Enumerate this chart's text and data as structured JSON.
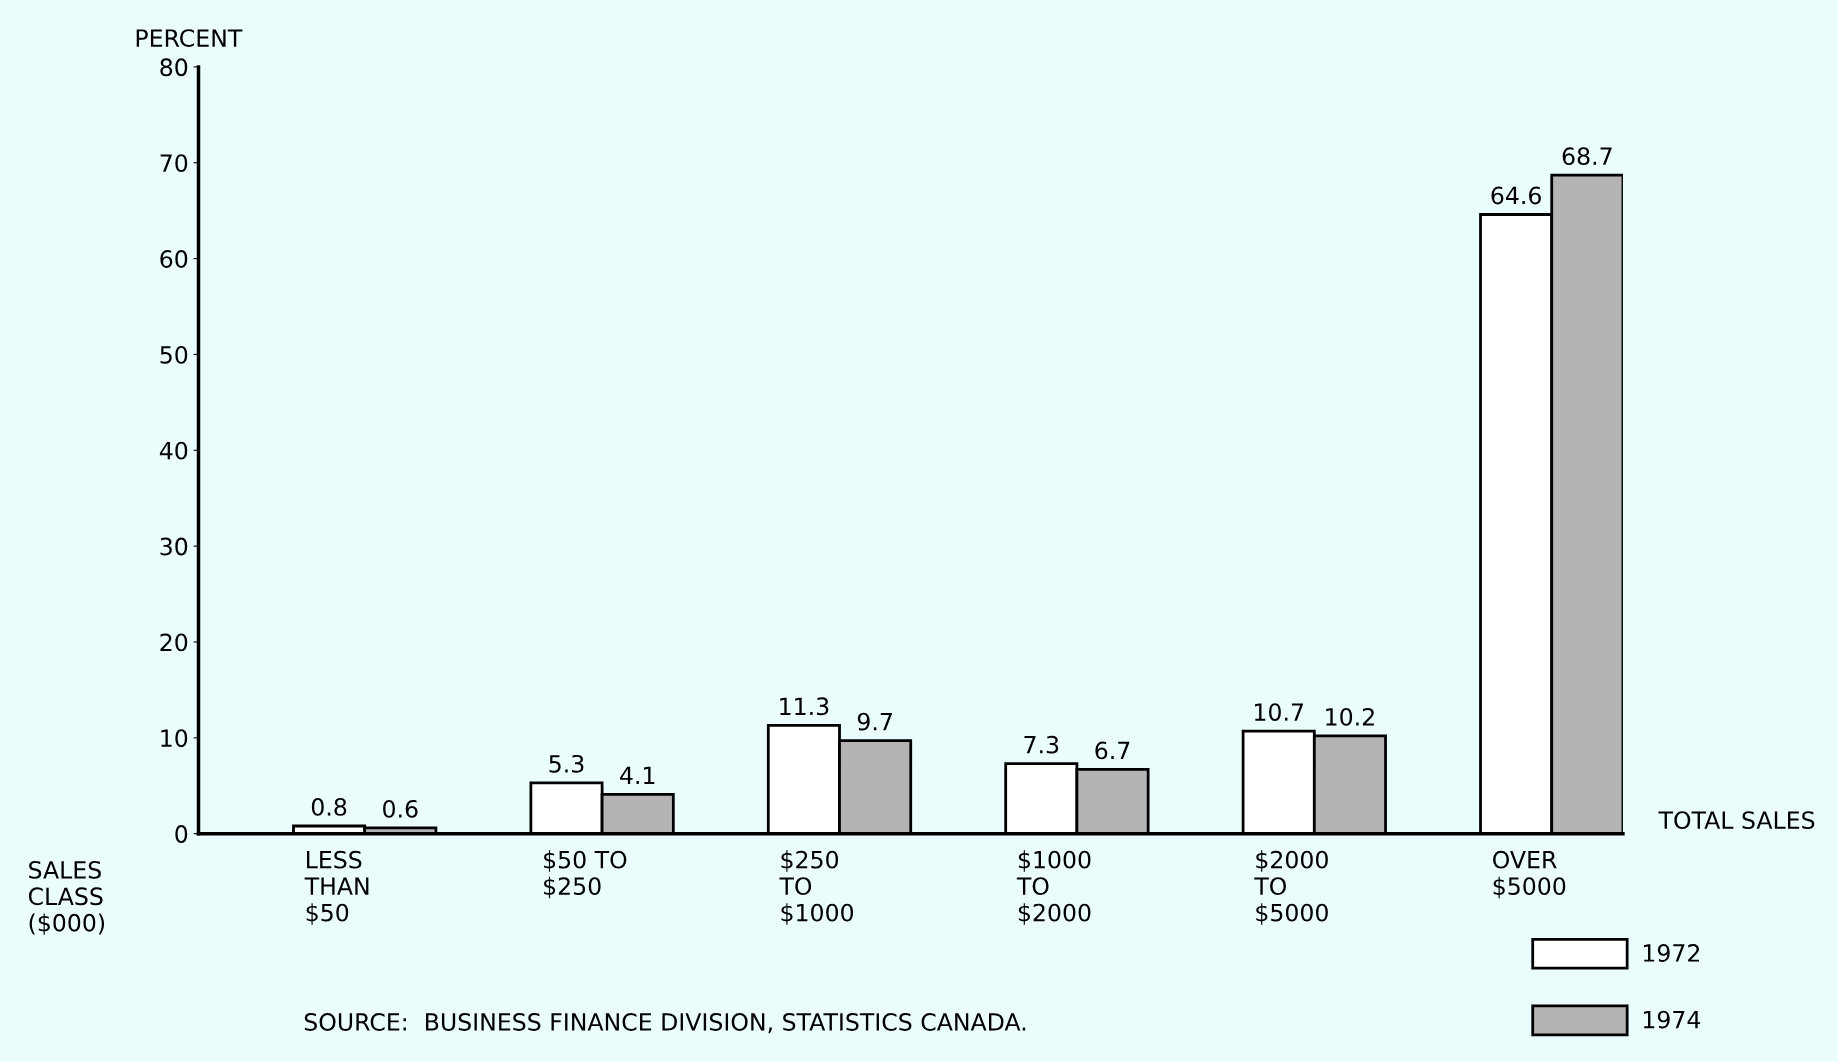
{
  "chart_data": {
    "type": "bar",
    "ylabel": "PERCENT",
    "xlabel": "SALES\nCLASS\n($000)",
    "categories": [
      "LESS\nTHAN\n$50",
      "$50 TO\n$250",
      "$250\nTO\n$1000",
      "$1000\nTO\n$2000",
      "$2000\nTO\n$5000",
      "OVER\n$5000"
    ],
    "series": [
      {
        "name": "1972",
        "color": "#ffffff",
        "values": [
          0.8,
          5.3,
          11.3,
          7.3,
          10.7,
          64.6
        ]
      },
      {
        "name": "1974",
        "color": "#b4b4b4",
        "values": [
          0.6,
          4.1,
          9.7,
          6.7,
          10.2,
          68.7
        ]
      }
    ],
    "ylim": [
      0,
      80
    ],
    "yticks": [
      0,
      10,
      20,
      30,
      40,
      50,
      60,
      70,
      80
    ],
    "grid": false,
    "legend": "bottom right",
    "data_labels": true,
    "annotations": [
      "TOTAL SALES",
      "SOURCE:  BUSINESS FINANCE DIVISION, STATISTICS CANADA."
    ]
  }
}
